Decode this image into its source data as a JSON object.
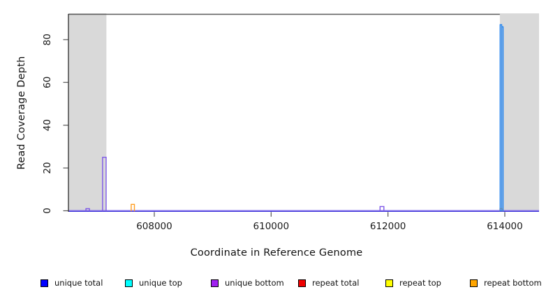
{
  "chart_data": {
    "type": "area",
    "title": "",
    "xlabel": "Coordinate in Reference Genome",
    "ylabel": "Read Coverage Depth",
    "xlim": [
      606530,
      614586
    ],
    "ylim": [
      0,
      92
    ],
    "grid": false,
    "legend_position": "bottom",
    "xticks": [
      608000,
      610000,
      612000,
      614000
    ],
    "xtick_labels": [
      "608000",
      "610000",
      "612000",
      "614000"
    ],
    "yticks": [
      0,
      20,
      40,
      60,
      80
    ],
    "ytick_labels": [
      "0",
      "20",
      "40",
      "60",
      "80"
    ],
    "shaded_regions": [
      {
        "name": "left-flank",
        "start": 606530,
        "end": 607180,
        "color": "#d9d9d9"
      },
      {
        "name": "right-flank",
        "start": 613915,
        "end": 614586,
        "color": "#d9d9d9"
      }
    ],
    "baseline": {
      "depth": 0,
      "colors": [
        "#8973ec",
        "#3a31d8"
      ]
    },
    "series": [
      {
        "name": "unique bottom",
        "color": "#7d57e8",
        "segments": [
          {
            "start": 606830,
            "end": 606890,
            "depth": 1
          },
          {
            "start": 607115,
            "end": 607175,
            "depth": 25
          },
          {
            "start": 611865,
            "end": 611930,
            "depth": 2
          }
        ]
      },
      {
        "name": "repeat bottom",
        "color": "#ff9d1e",
        "segments": [
          {
            "start": 607605,
            "end": 607660,
            "depth": 3
          },
          {
            "start": 613918,
            "end": 613950,
            "depth": 1
          }
        ]
      },
      {
        "name": "unique top",
        "color": "#1e82f0",
        "segments": [
          {
            "start": 613920,
            "end": 613947,
            "depth": 87
          },
          {
            "start": 613947,
            "end": 613970,
            "depth": 86
          }
        ]
      }
    ],
    "legend": [
      {
        "label": "unique total",
        "color": "#0000ff"
      },
      {
        "label": "unique top",
        "color": "#00ffff"
      },
      {
        "label": "unique bottom",
        "color": "#a020f0"
      },
      {
        "label": "repeat total",
        "color": "#ee0000"
      },
      {
        "label": "repeat top",
        "color": "#ffff00"
      },
      {
        "label": "repeat bottom",
        "color": "#ffa500"
      }
    ]
  }
}
